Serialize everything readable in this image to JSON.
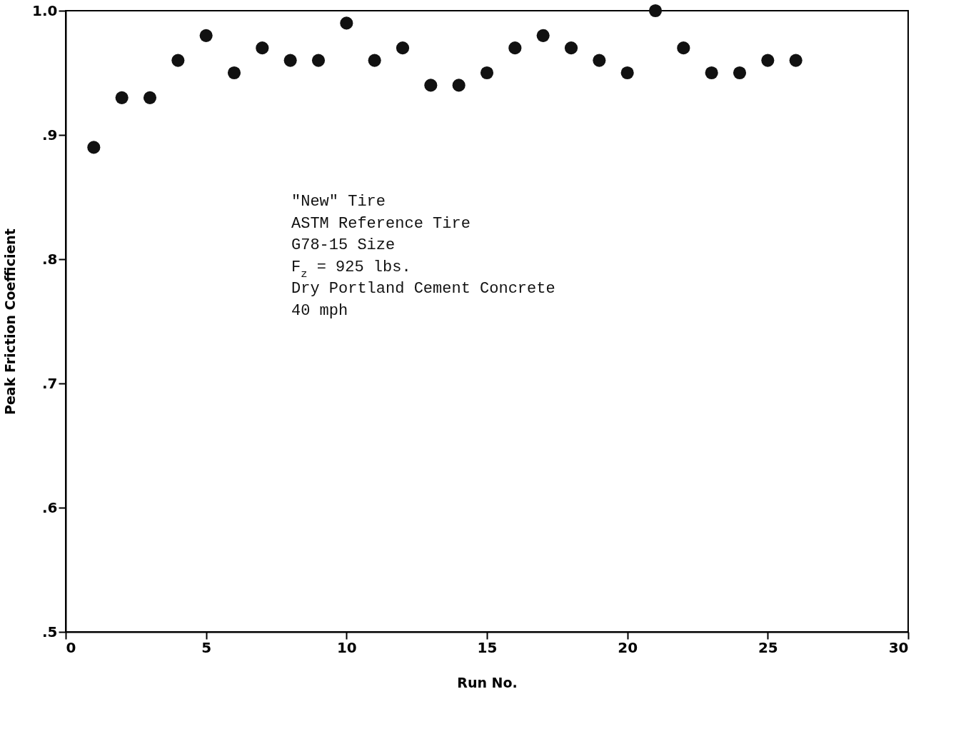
{
  "chart_data": {
    "type": "scatter",
    "xlabel": "Run No.",
    "ylabel": "Peak Friction Coefficient",
    "x": [
      1,
      2,
      3,
      4,
      5,
      6,
      7,
      8,
      9,
      10,
      11,
      12,
      13,
      14,
      15,
      16,
      17,
      18,
      19,
      20,
      21,
      22,
      23,
      24,
      25,
      26
    ],
    "series": [
      {
        "color": "#111111",
        "values": [
          0.89,
          0.93,
          0.93,
          0.96,
          0.98,
          0.95,
          0.97,
          0.96,
          0.96,
          0.99,
          0.96,
          0.97,
          0.94,
          0.94,
          0.95,
          0.97,
          0.98,
          0.97,
          0.96,
          0.95,
          1.0,
          0.97,
          0.95,
          0.95,
          0.96,
          0.96
        ]
      }
    ],
    "xlim": [
      0,
      30
    ],
    "xticks": [
      0,
      5,
      10,
      15,
      20,
      25,
      30
    ],
    "ylim": [
      0.5,
      1.0
    ],
    "yticks": [
      {
        "value": 0.5,
        "label": ".5"
      },
      {
        "value": 0.6,
        "label": ".6"
      },
      {
        "value": 0.7,
        "label": ".7"
      },
      {
        "value": 0.8,
        "label": ".8"
      },
      {
        "value": 0.9,
        "label": ".9"
      },
      {
        "value": 1.0,
        "label": "1.0"
      }
    ],
    "annotations": [
      "\"New\" Tire",
      "ASTM Reference Tire",
      "G78-15 Size",
      "F$_{z}$ = 925 lbs.",
      "Dry Portland Cement Concrete",
      "40 mph"
    ],
    "grid": false,
    "marker": "circle"
  }
}
